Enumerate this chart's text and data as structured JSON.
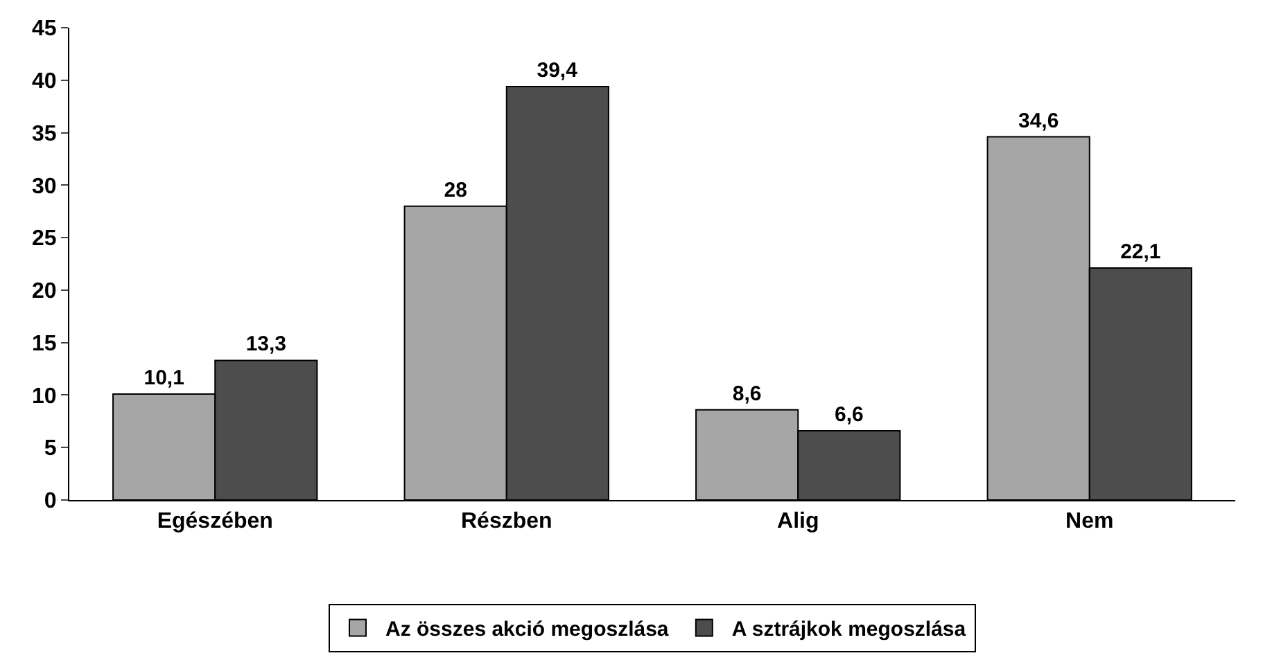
{
  "chart_data": {
    "type": "bar",
    "categories": [
      "Egészében",
      "Részben",
      "Alig",
      "Nem"
    ],
    "series": [
      {
        "name": "Az összes akció megoszlása",
        "color": "#a6a6a6",
        "values": [
          10.1,
          28,
          8.6,
          34.6
        ],
        "value_labels": [
          "10,1",
          "28",
          "8,6",
          "34,6"
        ]
      },
      {
        "name": "A sztrájkok megoszlása",
        "color": "#4d4d4d",
        "values": [
          13.3,
          39.4,
          6.6,
          22.1
        ],
        "value_labels": [
          "13,3",
          "39,4",
          "6,6",
          "22,1"
        ]
      }
    ],
    "ylim": [
      0,
      45
    ],
    "yticks": [
      0,
      5,
      10,
      15,
      20,
      25,
      30,
      35,
      40,
      45
    ],
    "legend": "bottom"
  }
}
